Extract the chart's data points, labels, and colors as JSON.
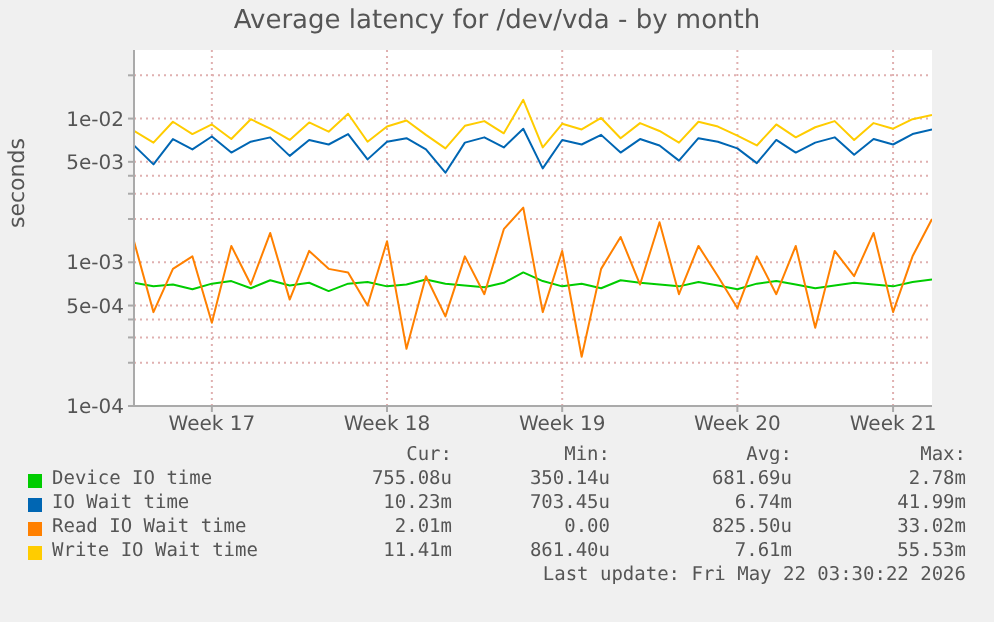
{
  "chart_data": {
    "type": "line",
    "title": "Average latency for /dev/vda - by month",
    "ylabel": "seconds",
    "log": "y",
    "grid": true,
    "legend": "bottom",
    "marker": "none",
    "line_style": "solid",
    "categories": [
      null,
      null,
      null,
      null,
      "Week 17",
      null,
      null,
      null,
      null,
      null,
      null,
      null,
      null,
      "Week 18",
      null,
      null,
      null,
      null,
      null,
      null,
      null,
      null,
      "Week 19",
      null,
      null,
      null,
      null,
      null,
      null,
      null,
      null,
      "Week 20",
      null,
      null,
      null,
      null,
      null,
      null,
      null,
      "Week 21",
      null,
      null
    ],
    "ylim": [
      0.0001,
      0.03
    ],
    "yticks": [
      {
        "value": 0.0001,
        "label": "1e-04"
      },
      {
        "value": 0.0002,
        "label": null
      },
      {
        "value": 0.0003,
        "label": null
      },
      {
        "value": 0.0004,
        "label": null
      },
      {
        "value": 0.0005,
        "label": "5e-04"
      },
      {
        "value": 0.001,
        "label": "1e-03"
      },
      {
        "value": 0.002,
        "label": null
      },
      {
        "value": 0.003,
        "label": null
      },
      {
        "value": 0.004,
        "label": null
      },
      {
        "value": 0.005,
        "label": "5e-03"
      },
      {
        "value": 0.01,
        "label": "1e-02"
      },
      {
        "value": 0.02,
        "label": null
      }
    ],
    "series": [
      {
        "name": "Device IO time",
        "color": "#00cc00",
        "values": [
          0.00072,
          0.00068,
          0.0007,
          0.00065,
          0.00071,
          0.00074,
          0.00066,
          0.00075,
          0.00069,
          0.00072,
          0.00063,
          0.00071,
          0.00073,
          0.00068,
          0.0007,
          0.00076,
          0.00071,
          0.00069,
          0.00067,
          0.00072,
          0.00085,
          0.00074,
          0.00068,
          0.00071,
          0.00066,
          0.00075,
          0.00072,
          0.0007,
          0.00068,
          0.00073,
          0.00069,
          0.00065,
          0.00071,
          0.00074,
          0.0007,
          0.00066,
          0.00069,
          0.00072,
          0.0007,
          0.00068,
          0.00073,
          0.00076
        ]
      },
      {
        "name": "IO Wait time",
        "color": "#0066b3",
        "values": [
          0.0065,
          0.0048,
          0.0072,
          0.0061,
          0.0075,
          0.0058,
          0.0069,
          0.0074,
          0.0055,
          0.0071,
          0.0066,
          0.0078,
          0.0052,
          0.0069,
          0.0073,
          0.0061,
          0.0042,
          0.0068,
          0.0074,
          0.0063,
          0.0085,
          0.0045,
          0.0071,
          0.0066,
          0.0077,
          0.0058,
          0.0072,
          0.0065,
          0.0051,
          0.0073,
          0.0069,
          0.0062,
          0.0049,
          0.0071,
          0.0058,
          0.0068,
          0.0074,
          0.0056,
          0.0072,
          0.0066,
          0.0078,
          0.0084
        ]
      },
      {
        "name": "Read IO Wait time",
        "color": "#ff8000",
        "values": [
          0.0014,
          0.00045,
          0.0009,
          0.0011,
          0.00038,
          0.0013,
          0.0007,
          0.0016,
          0.00055,
          0.0012,
          0.0009,
          0.00085,
          0.0005,
          0.0014,
          0.00025,
          0.0008,
          0.00042,
          0.0011,
          0.0006,
          0.0017,
          0.0024,
          0.00045,
          0.0012,
          0.00022,
          0.0009,
          0.0015,
          0.0007,
          0.0019,
          0.0006,
          0.0013,
          0.0008,
          0.00048,
          0.0011,
          0.0006,
          0.0013,
          0.00035,
          0.0012,
          0.0008,
          0.0016,
          0.00045,
          0.0011,
          0.002
        ]
      },
      {
        "name": "Write IO Wait time",
        "color": "#ffcc00",
        "values": [
          0.0082,
          0.0068,
          0.0095,
          0.0078,
          0.0091,
          0.0072,
          0.0099,
          0.0085,
          0.0071,
          0.0094,
          0.0081,
          0.0108,
          0.0069,
          0.0088,
          0.0097,
          0.0077,
          0.0062,
          0.0089,
          0.0096,
          0.0079,
          0.0135,
          0.0063,
          0.0092,
          0.0084,
          0.0101,
          0.0073,
          0.0093,
          0.0082,
          0.0068,
          0.0095,
          0.0088,
          0.0076,
          0.0065,
          0.0091,
          0.0074,
          0.0087,
          0.0096,
          0.0071,
          0.0093,
          0.0085,
          0.0099,
          0.0106
        ]
      }
    ],
    "annotations": [
      "Cur:",
      "Min:",
      "Avg:",
      "Max:",
      "755.08u",
      "350.14u",
      "681.69u",
      "2.78m",
      "10.23m",
      "703.45u",
      "6.74m",
      "41.99m",
      "2.01m",
      "0.00",
      "825.50u",
      "33.02m",
      "11.41m",
      "861.40u",
      "7.61m",
      "55.53m",
      "Last update: Fri May 22 03:30:22 2026"
    ]
  }
}
